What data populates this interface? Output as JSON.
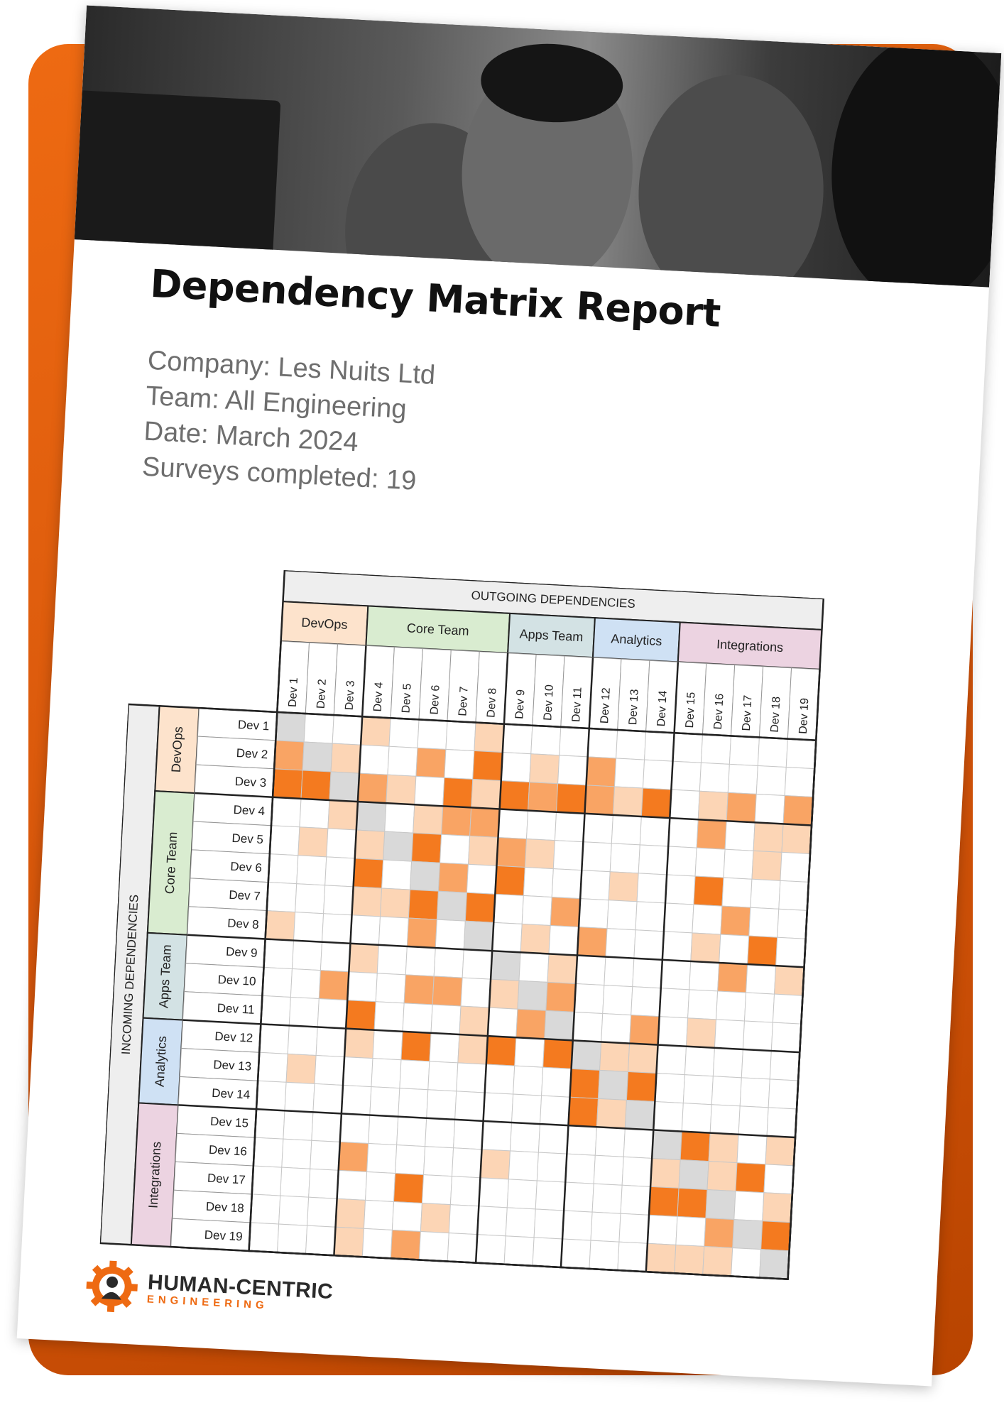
{
  "header": {
    "title": "Dependency Matrix Report",
    "details": [
      "Company: Les Nuits Ltd",
      "Team: All Engineering",
      "Date: March 2024",
      "Surveys completed: 19"
    ]
  },
  "matrix": {
    "outgoing_label": "OUTGOING DEPENDENCIES",
    "incoming_label": "INCOMING DEPENDENCIES",
    "groups": [
      {
        "name": "DevOps",
        "color": "#fde3cc",
        "members": [
          "Dev 1",
          "Dev 2",
          "Dev 3"
        ]
      },
      {
        "name": "Core Team",
        "color": "#d9ecd0",
        "members": [
          "Dev 4",
          "Dev 5",
          "Dev 6",
          "Dev 7",
          "Dev 8"
        ]
      },
      {
        "name": "Apps Team",
        "color": "#d3e2e4",
        "members": [
          "Dev 9",
          "Dev 10",
          "Dev 11"
        ]
      },
      {
        "name": "Analytics",
        "color": "#cfe1f4",
        "members": [
          "Dev 12",
          "Dev 13",
          "Dev 14"
        ]
      },
      {
        "name": "Integrations",
        "color": "#ecd3e1",
        "members": [
          "Dev 15",
          "Dev 16",
          "Dev 17",
          "Dev 18",
          "Dev 19"
        ]
      }
    ],
    "level_colors": [
      "#ffffff",
      "#fcd5b5",
      "#f9a464",
      "#f47a1f",
      "#d9d9d9"
    ],
    "rows": [
      [
        4,
        0,
        0,
        1,
        0,
        0,
        0,
        1,
        0,
        0,
        0,
        0,
        0,
        0,
        0,
        0,
        0,
        0,
        0
      ],
      [
        2,
        4,
        1,
        0,
        0,
        2,
        0,
        3,
        0,
        1,
        0,
        2,
        0,
        0,
        0,
        0,
        0,
        0,
        0
      ],
      [
        3,
        3,
        4,
        2,
        1,
        0,
        3,
        1,
        3,
        2,
        3,
        2,
        1,
        3,
        0,
        1,
        2,
        0,
        2
      ],
      [
        0,
        0,
        1,
        4,
        0,
        1,
        2,
        2,
        0,
        0,
        0,
        0,
        0,
        0,
        0,
        2,
        0,
        1,
        1
      ],
      [
        0,
        1,
        0,
        1,
        4,
        3,
        0,
        1,
        2,
        1,
        0,
        0,
        0,
        0,
        0,
        0,
        0,
        1,
        0
      ],
      [
        0,
        0,
        0,
        3,
        0,
        4,
        2,
        0,
        3,
        0,
        0,
        0,
        1,
        0,
        0,
        3,
        0,
        0,
        0
      ],
      [
        0,
        0,
        0,
        1,
        1,
        3,
        4,
        3,
        0,
        0,
        2,
        0,
        0,
        0,
        0,
        0,
        2,
        0,
        0
      ],
      [
        1,
        0,
        0,
        0,
        0,
        2,
        0,
        4,
        0,
        1,
        0,
        2,
        0,
        0,
        0,
        1,
        0,
        3,
        0
      ],
      [
        0,
        0,
        0,
        1,
        0,
        0,
        0,
        0,
        4,
        0,
        1,
        0,
        0,
        0,
        0,
        0,
        2,
        0,
        1
      ],
      [
        0,
        0,
        2,
        0,
        0,
        2,
        2,
        0,
        1,
        4,
        2,
        0,
        0,
        0,
        0,
        0,
        0,
        0,
        0
      ],
      [
        0,
        0,
        0,
        3,
        0,
        0,
        0,
        1,
        0,
        2,
        4,
        0,
        0,
        2,
        0,
        1,
        0,
        0,
        0
      ],
      [
        0,
        0,
        0,
        1,
        0,
        3,
        0,
        1,
        3,
        0,
        3,
        4,
        1,
        1,
        0,
        0,
        0,
        0,
        0
      ],
      [
        0,
        1,
        0,
        0,
        0,
        0,
        0,
        0,
        0,
        0,
        0,
        3,
        4,
        3,
        0,
        0,
        0,
        0,
        0
      ],
      [
        0,
        0,
        0,
        0,
        0,
        0,
        0,
        0,
        0,
        0,
        0,
        3,
        1,
        4,
        0,
        0,
        0,
        0,
        0
      ],
      [
        0,
        0,
        0,
        0,
        0,
        0,
        0,
        0,
        0,
        0,
        0,
        0,
        0,
        0,
        4,
        3,
        1,
        0,
        1
      ],
      [
        0,
        0,
        0,
        2,
        0,
        0,
        0,
        0,
        1,
        0,
        0,
        0,
        0,
        0,
        1,
        4,
        1,
        3,
        0
      ],
      [
        0,
        0,
        0,
        0,
        0,
        3,
        0,
        0,
        0,
        0,
        0,
        0,
        0,
        0,
        3,
        3,
        4,
        0,
        1
      ],
      [
        0,
        0,
        0,
        1,
        0,
        0,
        1,
        0,
        0,
        0,
        0,
        0,
        0,
        0,
        0,
        0,
        2,
        4,
        3
      ],
      [
        0,
        0,
        0,
        1,
        0,
        2,
        0,
        0,
        0,
        0,
        0,
        0,
        0,
        0,
        1,
        1,
        1,
        0,
        4
      ]
    ]
  },
  "logo": {
    "name": "HUMAN-CENTRIC",
    "tagline": "ENGINEERING"
  }
}
